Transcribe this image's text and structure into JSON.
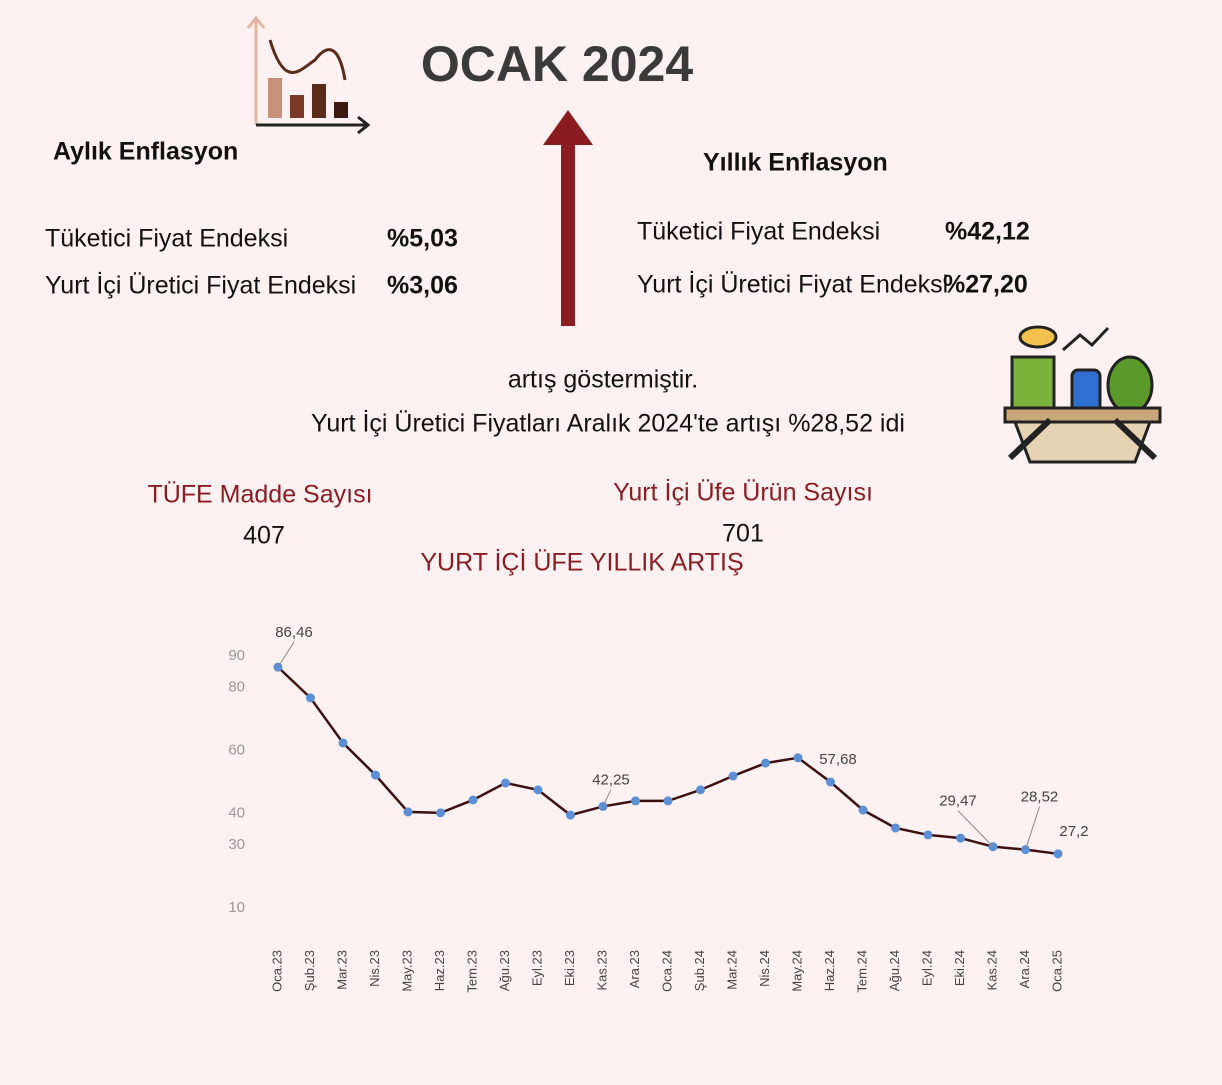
{
  "header": {
    "title": "OCAK 2024"
  },
  "monthly": {
    "heading": "Aylık Enflasyon",
    "rows": [
      [
        "Tüketici Fiyat Endeksi",
        "%5,03"
      ],
      [
        "Yurt İçi Üretici Fiyat Endeksi",
        "%3,06"
      ]
    ]
  },
  "yearly": {
    "heading": "Yıllık Enflasyon",
    "rows": [
      [
        "Tüketici Fiyat Endeksi",
        "%42,12"
      ],
      [
        "Yurt İçi Üretici Fiyat Endeksi",
        "%27,20"
      ]
    ]
  },
  "notes": [
    "artış göstermiştir.",
    "Yurt İçi Üretici Fiyatları Aralık  2024'te artışı %28,52 idi"
  ],
  "counts": [
    {
      "label": "TÜFE Madde Sayısı",
      "value": 407
    },
    {
      "label": "Yurt İçi Üfe Ürün Sayısı",
      "value": 701
    }
  ],
  "chart_data": {
    "type": "line",
    "title": "YURT İÇİ ÜFE  YILLIK ARTIŞ",
    "categories": [
      "Oca.23",
      "Şub.23",
      "Mar.23",
      "Nis.23",
      "May.23",
      "Haz.23",
      "Tem.23",
      "Ağu.23",
      "Eyl.23",
      "Eki.23",
      "Kas.23",
      "Ara.23",
      "Oca.24",
      "Şub.24",
      "Mar.24",
      "Nis.24",
      "May.24",
      "Haz.24",
      "Tem.24",
      "Ağu.24",
      "Eyl.24",
      "Eki.24",
      "Kas.24",
      "Ara.24",
      "Oca.25"
    ],
    "values": [
      86.46,
      76.7,
      62.4,
      52.2,
      40.5,
      40.2,
      44.3,
      49.7,
      47.5,
      39.5,
      42.25,
      44.0,
      44.0,
      47.5,
      51.9,
      56.0,
      57.68,
      50.0,
      41.1,
      35.4,
      33.2,
      32.2,
      29.47,
      28.52,
      27.2
    ],
    "value_labels": [
      "86,46",
      null,
      null,
      null,
      null,
      null,
      null,
      null,
      null,
      null,
      "42,25",
      null,
      null,
      null,
      null,
      null,
      "57,68",
      null,
      null,
      null,
      null,
      null,
      "29,47",
      "28,52",
      "27,2"
    ],
    "color": "#3d1010",
    "marker_color": "#5b8fd6",
    "ylim": [
      10,
      90
    ],
    "yticks": [
      90,
      80,
      60,
      40,
      30,
      10
    ],
    "grid": false
  }
}
